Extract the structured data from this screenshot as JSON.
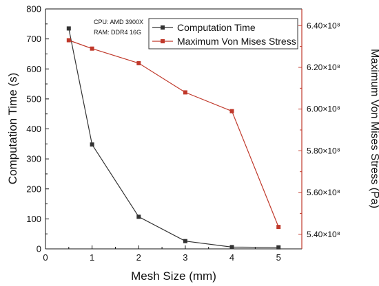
{
  "chart_data": {
    "type": "line",
    "xlabel": "Mesh Size (mm)",
    "ylabel": "Computation Time (s)",
    "y2label": "Maximum Von Mises Stress (Pa)",
    "xlim": [
      0,
      5.5
    ],
    "ylim": [
      0,
      800
    ],
    "y2lim": [
      533000000,
      648000000
    ],
    "x_ticks": [
      0,
      1,
      2,
      3,
      4,
      5
    ],
    "y_ticks": [
      0,
      100,
      200,
      300,
      400,
      500,
      600,
      700,
      800
    ],
    "y2_ticks": [
      {
        "value": 540000000,
        "label": "5.40×10⁸"
      },
      {
        "value": 560000000,
        "label": "5.60×10⁸"
      },
      {
        "value": 580000000,
        "label": "5.80×10⁸"
      },
      {
        "value": 600000000,
        "label": "6.00×10⁸"
      },
      {
        "value": 620000000,
        "label": "6.20×10⁸"
      },
      {
        "value": 640000000,
        "label": "6.40×10⁸"
      }
    ],
    "annotations": [
      "CPU: AMD 3900X",
      "RAM: DDR4 16G"
    ],
    "legend_position": "top-right",
    "series": [
      {
        "name": "Computation Time",
        "axis": "left",
        "color": "#333333",
        "marker": "square",
        "x": [
          0.5,
          1,
          2,
          3,
          4,
          5
        ],
        "values": [
          735,
          348,
          107,
          26,
          6,
          5
        ]
      },
      {
        "name": "Maximum Von Mises Stress",
        "axis": "right",
        "color": "#c0392b",
        "marker": "square",
        "x": [
          0.5,
          1,
          2,
          3,
          4,
          5
        ],
        "values": [
          633000000,
          629000000,
          622000000,
          608000000,
          599000000,
          543500000
        ]
      }
    ]
  },
  "colors": {
    "left_axis": "#111111",
    "right_axis": "#c0392b"
  }
}
